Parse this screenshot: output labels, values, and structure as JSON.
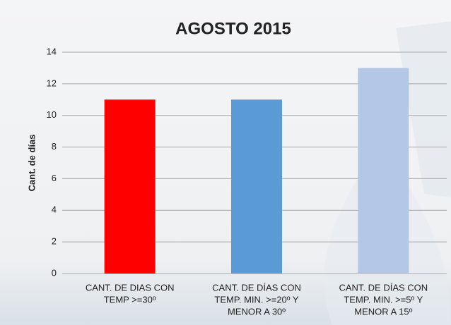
{
  "chart_data": {
    "type": "bar",
    "title": "AGOSTO 2015",
    "y_label": "Cant. de días",
    "categories": [
      [
        "CANT. DE DIAS CON",
        "TEMP >=30º"
      ],
      [
        "CANT. DE DÍAS CON",
        "TEMP. MIN. >=20º Y",
        "MENOR A 30º"
      ],
      [
        "CANT. DE DÍAS CON",
        "TEMP. MIN. >=5º Y",
        "MENOR A 15º"
      ]
    ],
    "values": [
      11,
      11,
      13
    ],
    "colors": [
      "#ff0000",
      "#5b9bd5",
      "#b4c7e7"
    ],
    "ylim": [
      0,
      14
    ],
    "yticks": [
      0,
      2,
      4,
      6,
      8,
      10,
      12,
      14
    ],
    "grid": true
  }
}
